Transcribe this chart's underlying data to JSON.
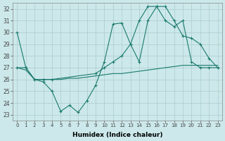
{
  "xlabel": "Humidex (Indice chaleur)",
  "bg_color": "#cce8ea",
  "grid_color": "#aacccc",
  "line_color": "#1a7a6e",
  "xlim": [
    -0.5,
    23.5
  ],
  "ylim": [
    22.5,
    32.5
  ],
  "xticks": [
    0,
    1,
    2,
    3,
    4,
    5,
    6,
    7,
    8,
    9,
    10,
    11,
    12,
    13,
    14,
    15,
    16,
    17,
    18,
    19,
    20,
    21,
    22,
    23
  ],
  "yticks": [
    23,
    24,
    25,
    26,
    27,
    28,
    29,
    30,
    31,
    32
  ],
  "line1_x": [
    0,
    1,
    2,
    3,
    4,
    5,
    6,
    7,
    8,
    9,
    10,
    11,
    12,
    13,
    14,
    15,
    16,
    17,
    18,
    19,
    20,
    21,
    22,
    23
  ],
  "line1_y": [
    30.0,
    27.0,
    26.0,
    25.8,
    25.0,
    23.3,
    23.8,
    23.2,
    24.2,
    25.5,
    27.5,
    30.7,
    30.8,
    29.0,
    27.5,
    31.0,
    32.2,
    32.2,
    31.0,
    29.7,
    29.5,
    29.0,
    27.8,
    27.0
  ],
  "line2_x": [
    0,
    1,
    2,
    3,
    4,
    9,
    10,
    11,
    12,
    13,
    14,
    15,
    16,
    17,
    18,
    19,
    20,
    21,
    22,
    23
  ],
  "line2_y": [
    27.0,
    27.0,
    26.0,
    26.0,
    26.0,
    26.5,
    27.0,
    27.5,
    28.0,
    29.0,
    31.0,
    32.2,
    32.2,
    31.0,
    30.5,
    31.0,
    27.5,
    27.0,
    27.0,
    27.0
  ],
  "line3_x": [
    0,
    1,
    2,
    3,
    4,
    5,
    6,
    7,
    8,
    9,
    10,
    11,
    12,
    13,
    14,
    15,
    16,
    17,
    18,
    19,
    20,
    21,
    22,
    23
  ],
  "line3_y": [
    27.0,
    26.8,
    26.0,
    26.0,
    26.0,
    26.0,
    26.1,
    26.1,
    26.2,
    26.3,
    26.4,
    26.5,
    26.5,
    26.6,
    26.7,
    26.8,
    26.9,
    27.0,
    27.1,
    27.2,
    27.2,
    27.2,
    27.2,
    27.2
  ]
}
